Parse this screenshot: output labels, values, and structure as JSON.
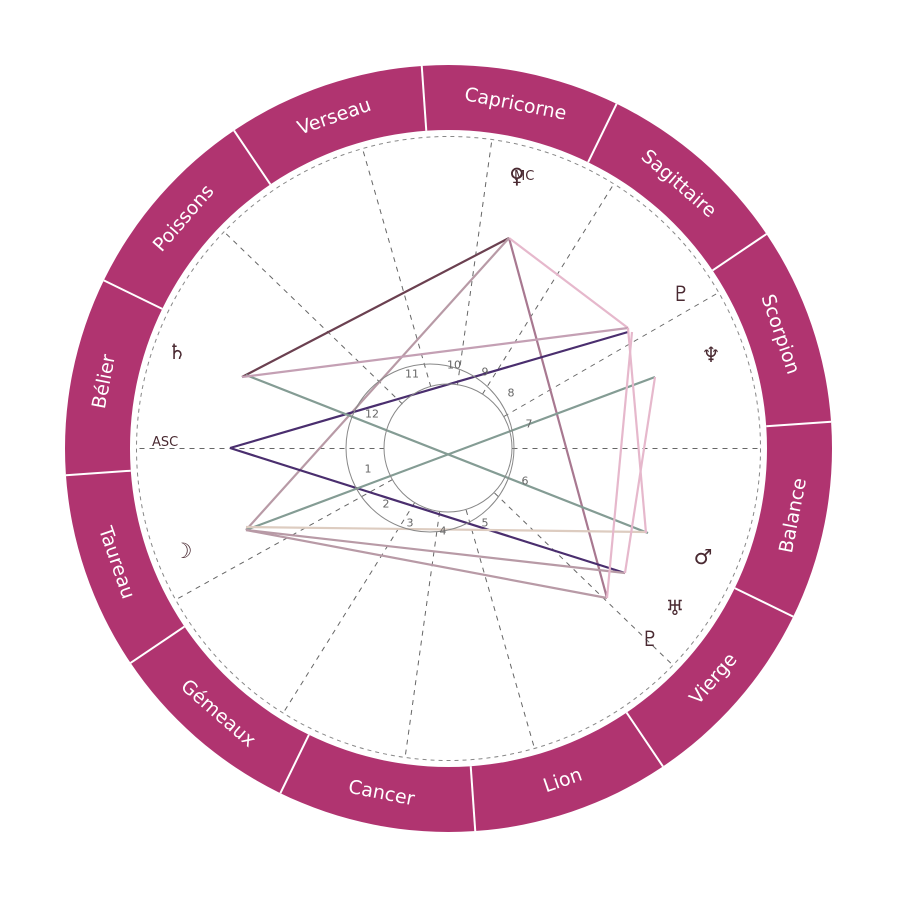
{
  "colors": {
    "ring": "#b03470",
    "ring_divider": "#ffffff",
    "sign_text": "#ffffff",
    "glyph": "#4a2a32",
    "house_line": "#666666",
    "inner_circle": "#888888"
  },
  "signs": [
    "Verseau",
    "Capricorne",
    "Sagittaire",
    "Scorpion",
    "Balance",
    "Vierge",
    "Lion",
    "Cancer",
    "Gémeaux",
    "Taureau",
    "Bélier",
    "Poissons"
  ],
  "houses": [
    "1",
    "2",
    "3",
    "4",
    "5",
    "6",
    "7",
    "8",
    "9",
    "10",
    "11",
    "12"
  ],
  "angles": {
    "asc": "ASC",
    "mc": "MC"
  },
  "planets": [
    {
      "name": "venus",
      "glyph": "♀"
    },
    {
      "name": "pluto",
      "glyph": "♇"
    },
    {
      "name": "neptune",
      "glyph": "♆"
    },
    {
      "name": "mars",
      "glyph": "♂"
    },
    {
      "name": "uranus",
      "glyph": "♅"
    },
    {
      "name": "pluto-2",
      "glyph": "♇"
    },
    {
      "name": "moon",
      "glyph": "☽"
    },
    {
      "name": "saturn",
      "glyph": "♄"
    }
  ]
}
